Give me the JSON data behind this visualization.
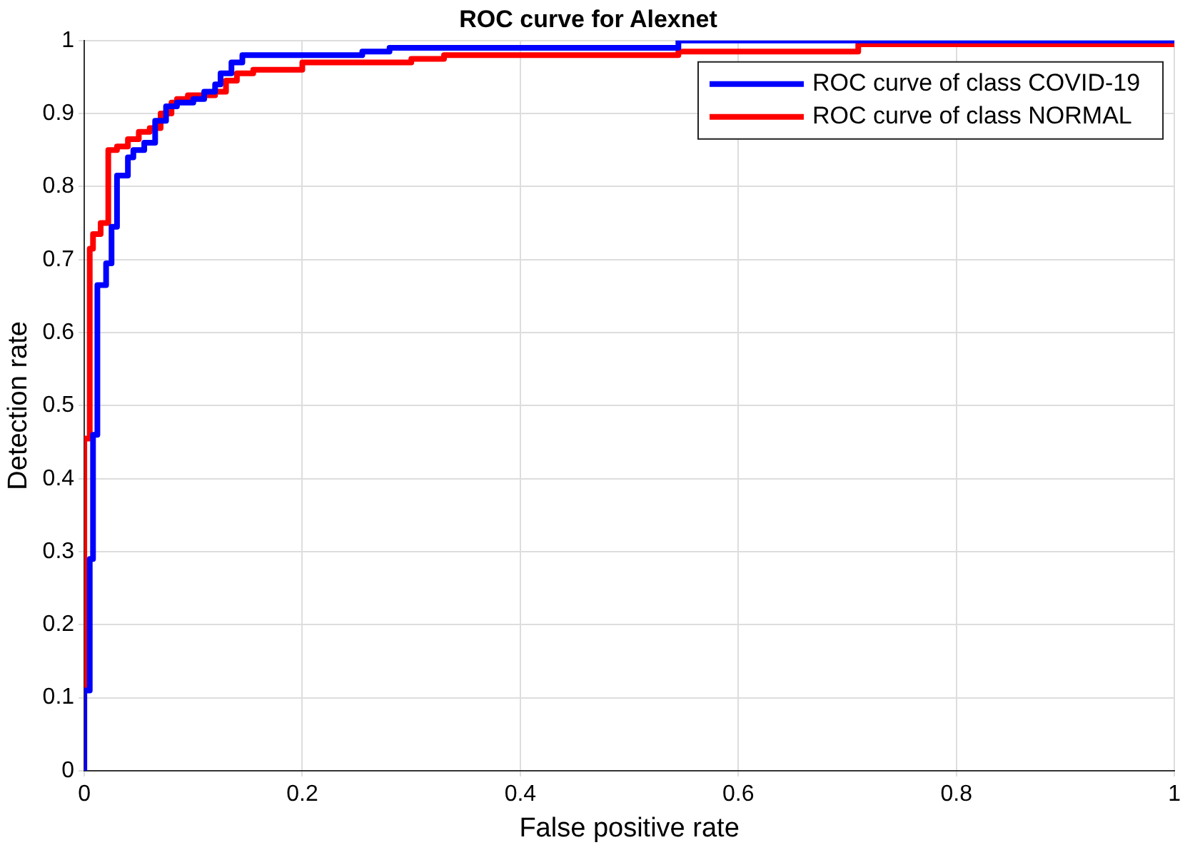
{
  "chart_data": {
    "type": "step",
    "title": "ROC curve for Alexnet",
    "xlabel": "False positive rate",
    "ylabel": "Detection rate",
    "xlim": [
      0,
      1
    ],
    "ylim": [
      0,
      1
    ],
    "xticks": [
      0,
      0.2,
      0.4,
      0.6,
      0.8,
      1
    ],
    "yticks": [
      0,
      0.1,
      0.2,
      0.3,
      0.4,
      0.5,
      0.6,
      0.7,
      0.8,
      0.9,
      1
    ],
    "grid": true,
    "legend": "top right",
    "line_style": "solid",
    "marker": "none",
    "series": [
      {
        "name": "ROC curve of class COVID-19",
        "color": "#0000ff",
        "x": [
          0,
          0.005,
          0.008,
          0.012,
          0.02,
          0.025,
          0.03,
          0.04,
          0.045,
          0.055,
          0.065,
          0.075,
          0.085,
          0.1,
          0.11,
          0.12,
          0.125,
          0.135,
          0.145,
          0.255,
          0.28,
          0.545,
          0.845,
          1
        ],
        "values": [
          0,
          0.11,
          0.29,
          0.46,
          0.665,
          0.695,
          0.745,
          0.815,
          0.84,
          0.85,
          0.86,
          0.89,
          0.91,
          0.915,
          0.92,
          0.93,
          0.94,
          0.955,
          0.97,
          0.98,
          0.985,
          0.99,
          1,
          1
        ]
      },
      {
        "name": "ROC curve of class NORMAL",
        "color": "#ff0000",
        "x": [
          0,
          0,
          0.005,
          0.008,
          0.015,
          0.022,
          0.03,
          0.04,
          0.05,
          0.06,
          0.07,
          0.08,
          0.085,
          0.095,
          0.12,
          0.13,
          0.14,
          0.155,
          0.2,
          0.3,
          0.33,
          0.545,
          0.71,
          0.885,
          1
        ],
        "values": [
          0,
          0.155,
          0.455,
          0.715,
          0.735,
          0.75,
          0.85,
          0.855,
          0.865,
          0.875,
          0.88,
          0.9,
          0.915,
          0.92,
          0.925,
          0.93,
          0.945,
          0.955,
          0.96,
          0.97,
          0.975,
          0.98,
          0.985,
          0.995,
          0.995
        ]
      }
    ]
  }
}
